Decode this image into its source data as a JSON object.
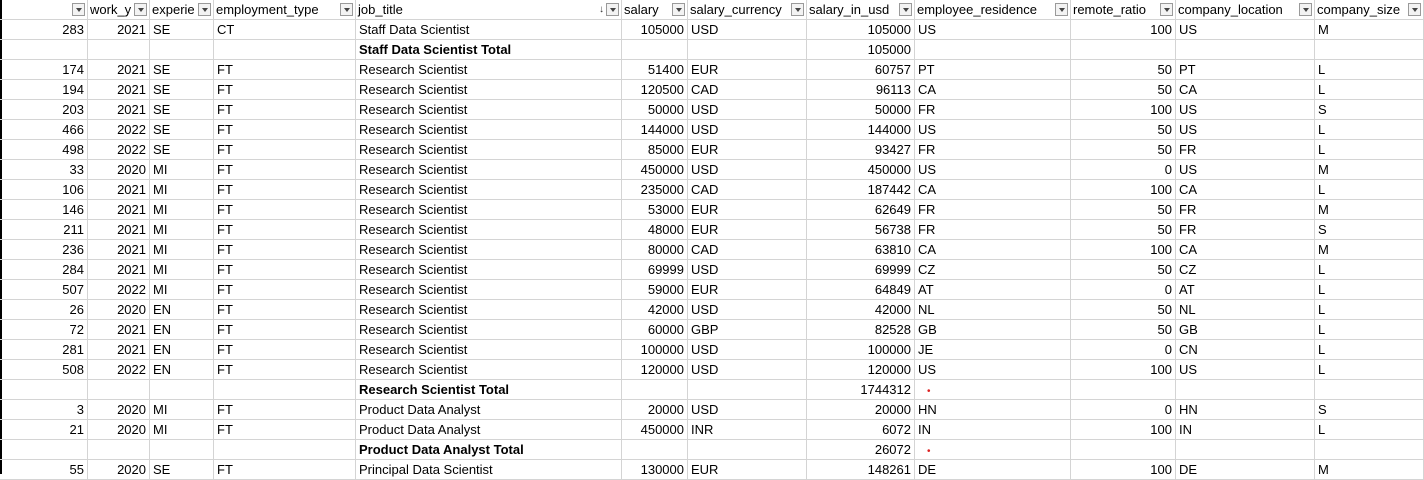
{
  "headers": [
    {
      "label": ""
    },
    {
      "label": "work_y"
    },
    {
      "label": "experie"
    },
    {
      "label": "employment_type"
    },
    {
      "label": "job_title",
      "sort": "↓"
    },
    {
      "label": "salary"
    },
    {
      "label": "salary_currency"
    },
    {
      "label": "salary_in_usd"
    },
    {
      "label": "employee_residence"
    },
    {
      "label": "remote_ratio"
    },
    {
      "label": "company_location"
    },
    {
      "label": "company_size"
    }
  ],
  "rows": [
    {
      "type": "data",
      "id": "283",
      "year": "2021",
      "exp": "SE",
      "emp": "CT",
      "title": "Staff Data Scientist",
      "salary": "105000",
      "cur": "USD",
      "usd": "105000",
      "res": "US",
      "remote": "100",
      "loc": "US",
      "size": "M"
    },
    {
      "type": "total",
      "title": "Staff Data Scientist Total",
      "usd": "105000"
    },
    {
      "type": "data",
      "id": "174",
      "year": "2021",
      "exp": "SE",
      "emp": "FT",
      "title": "Research Scientist",
      "salary": "51400",
      "cur": "EUR",
      "usd": "60757",
      "res": "PT",
      "remote": "50",
      "loc": "PT",
      "size": "L"
    },
    {
      "type": "data",
      "id": "194",
      "year": "2021",
      "exp": "SE",
      "emp": "FT",
      "title": "Research Scientist",
      "salary": "120500",
      "cur": "CAD",
      "usd": "96113",
      "res": "CA",
      "remote": "50",
      "loc": "CA",
      "size": "L"
    },
    {
      "type": "data",
      "id": "203",
      "year": "2021",
      "exp": "SE",
      "emp": "FT",
      "title": "Research Scientist",
      "salary": "50000",
      "cur": "USD",
      "usd": "50000",
      "res": "FR",
      "remote": "100",
      "loc": "US",
      "size": "S"
    },
    {
      "type": "data",
      "id": "466",
      "year": "2022",
      "exp": "SE",
      "emp": "FT",
      "title": "Research Scientist",
      "salary": "144000",
      "cur": "USD",
      "usd": "144000",
      "res": "US",
      "remote": "50",
      "loc": "US",
      "size": "L"
    },
    {
      "type": "data",
      "id": "498",
      "year": "2022",
      "exp": "SE",
      "emp": "FT",
      "title": "Research Scientist",
      "salary": "85000",
      "cur": "EUR",
      "usd": "93427",
      "res": "FR",
      "remote": "50",
      "loc": "FR",
      "size": "L"
    },
    {
      "type": "data",
      "id": "33",
      "year": "2020",
      "exp": "MI",
      "emp": "FT",
      "title": "Research Scientist",
      "salary": "450000",
      "cur": "USD",
      "usd": "450000",
      "res": "US",
      "remote": "0",
      "loc": "US",
      "size": "M"
    },
    {
      "type": "data",
      "id": "106",
      "year": "2021",
      "exp": "MI",
      "emp": "FT",
      "title": "Research Scientist",
      "salary": "235000",
      "cur": "CAD",
      "usd": "187442",
      "res": "CA",
      "remote": "100",
      "loc": "CA",
      "size": "L"
    },
    {
      "type": "data",
      "id": "146",
      "year": "2021",
      "exp": "MI",
      "emp": "FT",
      "title": "Research Scientist",
      "salary": "53000",
      "cur": "EUR",
      "usd": "62649",
      "res": "FR",
      "remote": "50",
      "loc": "FR",
      "size": "M"
    },
    {
      "type": "data",
      "id": "211",
      "year": "2021",
      "exp": "MI",
      "emp": "FT",
      "title": "Research Scientist",
      "salary": "48000",
      "cur": "EUR",
      "usd": "56738",
      "res": "FR",
      "remote": "50",
      "loc": "FR",
      "size": "S"
    },
    {
      "type": "data",
      "id": "236",
      "year": "2021",
      "exp": "MI",
      "emp": "FT",
      "title": "Research Scientist",
      "salary": "80000",
      "cur": "CAD",
      "usd": "63810",
      "res": "CA",
      "remote": "100",
      "loc": "CA",
      "size": "M"
    },
    {
      "type": "data",
      "id": "284",
      "year": "2021",
      "exp": "MI",
      "emp": "FT",
      "title": "Research Scientist",
      "salary": "69999",
      "cur": "USD",
      "usd": "69999",
      "res": "CZ",
      "remote": "50",
      "loc": "CZ",
      "size": "L"
    },
    {
      "type": "data",
      "id": "507",
      "year": "2022",
      "exp": "MI",
      "emp": "FT",
      "title": "Research Scientist",
      "salary": "59000",
      "cur": "EUR",
      "usd": "64849",
      "res": "AT",
      "remote": "0",
      "loc": "AT",
      "size": "L"
    },
    {
      "type": "data",
      "id": "26",
      "year": "2020",
      "exp": "EN",
      "emp": "FT",
      "title": "Research Scientist",
      "salary": "42000",
      "cur": "USD",
      "usd": "42000",
      "res": "NL",
      "remote": "50",
      "loc": "NL",
      "size": "L"
    },
    {
      "type": "data",
      "id": "72",
      "year": "2021",
      "exp": "EN",
      "emp": "FT",
      "title": "Research Scientist",
      "salary": "60000",
      "cur": "GBP",
      "usd": "82528",
      "res": "GB",
      "remote": "50",
      "loc": "GB",
      "size": "L"
    },
    {
      "type": "data",
      "id": "281",
      "year": "2021",
      "exp": "EN",
      "emp": "FT",
      "title": "Research Scientist",
      "salary": "100000",
      "cur": "USD",
      "usd": "100000",
      "res": "JE",
      "remote": "0",
      "loc": "CN",
      "size": "L"
    },
    {
      "type": "data",
      "id": "508",
      "year": "2022",
      "exp": "EN",
      "emp": "FT",
      "title": "Research Scientist",
      "salary": "120000",
      "cur": "USD",
      "usd": "120000",
      "res": "US",
      "remote": "100",
      "loc": "US",
      "size": "L"
    },
    {
      "type": "total",
      "title": "Research Scientist Total",
      "usd": "1744312",
      "dot": "•"
    },
    {
      "type": "data",
      "id": "3",
      "year": "2020",
      "exp": "MI",
      "emp": "FT",
      "title": "Product Data Analyst",
      "salary": "20000",
      "cur": "USD",
      "usd": "20000",
      "res": "HN",
      "remote": "0",
      "loc": "HN",
      "size": "S"
    },
    {
      "type": "data",
      "id": "21",
      "year": "2020",
      "exp": "MI",
      "emp": "FT",
      "title": "Product Data Analyst",
      "salary": "450000",
      "cur": "INR",
      "usd": "6072",
      "res": "IN",
      "remote": "100",
      "loc": "IN",
      "size": "L"
    },
    {
      "type": "total",
      "title": "Product Data Analyst Total",
      "usd": "26072",
      "dot": "•"
    },
    {
      "type": "data",
      "id": "55",
      "year": "2020",
      "exp": "SE",
      "emp": "FT",
      "title": "Principal Data Scientist",
      "salary": "130000",
      "cur": "EUR",
      "usd": "148261",
      "res": "DE",
      "remote": "100",
      "loc": "DE",
      "size": "M"
    }
  ]
}
